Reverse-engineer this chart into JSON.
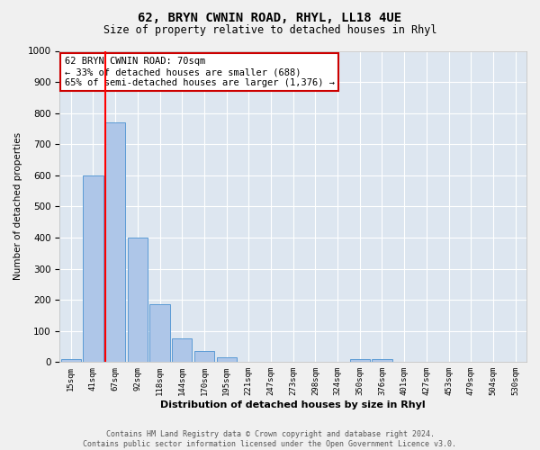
{
  "title": "62, BRYN CWNIN ROAD, RHYL, LL18 4UE",
  "subtitle": "Size of property relative to detached houses in Rhyl",
  "xlabel": "Distribution of detached houses by size in Rhyl",
  "ylabel": "Number of detached properties",
  "categories": [
    "15sqm",
    "41sqm",
    "67sqm",
    "92sqm",
    "118sqm",
    "144sqm",
    "170sqm",
    "195sqm",
    "221sqm",
    "247sqm",
    "273sqm",
    "298sqm",
    "324sqm",
    "350sqm",
    "376sqm",
    "401sqm",
    "427sqm",
    "453sqm",
    "479sqm",
    "504sqm",
    "530sqm"
  ],
  "bar_values": [
    10,
    600,
    770,
    400,
    185,
    75,
    35,
    15,
    0,
    0,
    0,
    0,
    0,
    10,
    10,
    0,
    0,
    0,
    0,
    0,
    0
  ],
  "bar_color": "#aec6e8",
  "bar_edge_color": "#5b9bd5",
  "property_line_idx": 2,
  "property_line_label": "62 BRYN CWNIN ROAD: 70sqm",
  "annotation_line1": "← 33% of detached houses are smaller (688)",
  "annotation_line2": "65% of semi-detached houses are larger (1,376) →",
  "annotation_box_color": "#ffffff",
  "annotation_box_edge_color": "#cc0000",
  "ylim": [
    0,
    1000
  ],
  "yticks": [
    0,
    100,
    200,
    300,
    400,
    500,
    600,
    700,
    800,
    900,
    1000
  ],
  "background_color": "#dde6f0",
  "grid_color": "#ffffff",
  "title_fontsize": 10,
  "subtitle_fontsize": 8.5,
  "footer_line1": "Contains HM Land Registry data © Crown copyright and database right 2024.",
  "footer_line2": "Contains public sector information licensed under the Open Government Licence v3.0."
}
